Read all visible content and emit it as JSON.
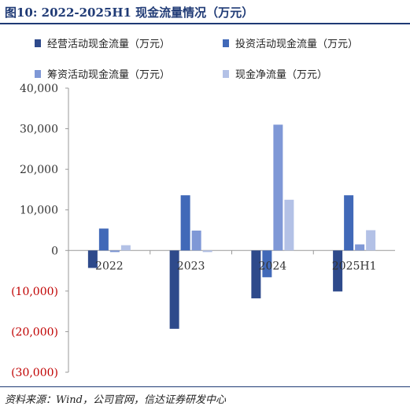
{
  "title": "图10: 2022-2025H1 现金流量情况（万元）",
  "source": "资料来源：Wind，公司官网，信达证券研发中心",
  "chart_data": {
    "type": "bar",
    "categories": [
      "2022",
      "2023",
      "2024",
      "2025H1"
    ],
    "series": [
      {
        "name": "经营活动现金流量（万元）",
        "color": "#2e4a8b",
        "values": [
          -4300,
          -19300,
          -11800,
          -10100
        ]
      },
      {
        "name": "投资活动现金流量（万元）",
        "color": "#4169b8",
        "values": [
          5400,
          13600,
          -6600,
          13600
        ]
      },
      {
        "name": "筹资活动现金流量（万元）",
        "color": "#7f98d6",
        "values": [
          -400,
          4900,
          31000,
          1500
        ]
      },
      {
        "name": "现金净流量（万元）",
        "color": "#b3c1e6",
        "values": [
          1300,
          -400,
          12500,
          5000
        ]
      }
    ],
    "ylim": [
      -30000,
      40000
    ],
    "yticks": [
      40000,
      30000,
      20000,
      10000,
      0,
      -10000,
      -20000,
      -30000
    ],
    "ytick_labels": [
      "40,000",
      "30,000",
      "20,000",
      "10,000",
      "0",
      "(10,000)",
      "(20,000)",
      "(30,000)"
    ],
    "negative_label_color": "#c00000",
    "grid": false,
    "legend_position": "top"
  }
}
